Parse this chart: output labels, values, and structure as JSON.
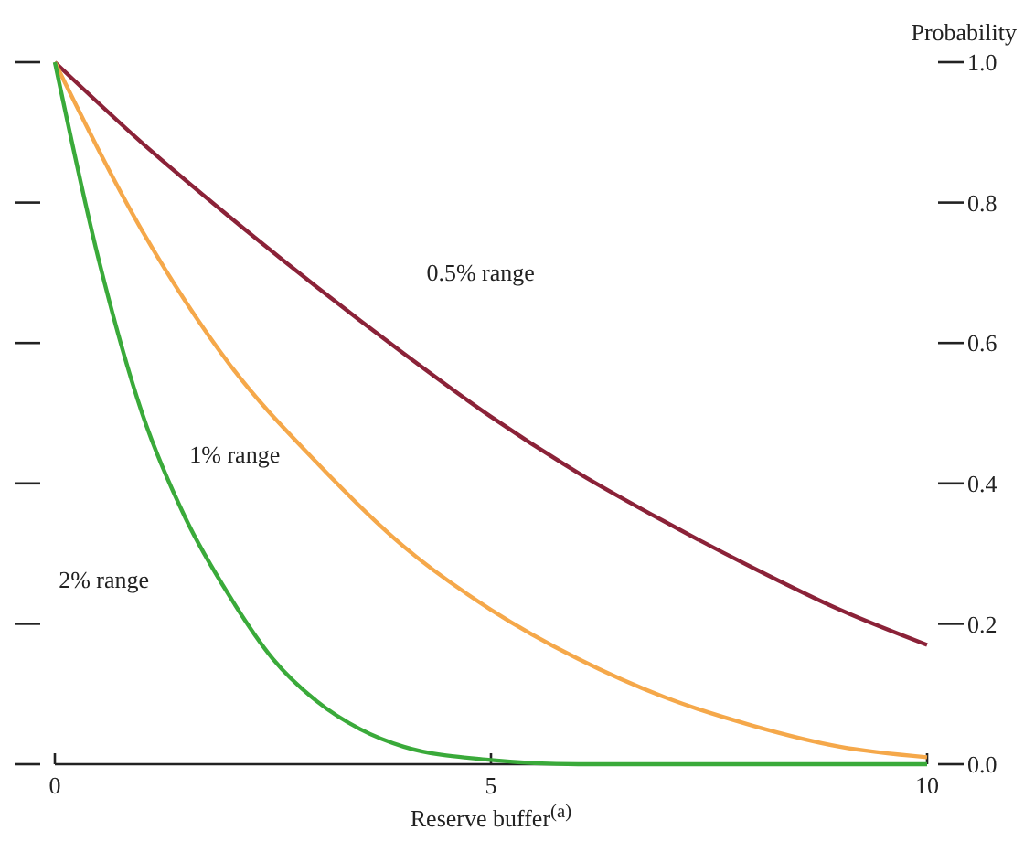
{
  "chart_data": {
    "type": "line",
    "xlabel": "Reserve buffer$^{(a)}$",
    "ylabel": "Probability",
    "xlim": [
      0,
      10
    ],
    "xticks": [
      0,
      5,
      10
    ],
    "ylim": [
      0,
      1
    ],
    "yticks": [
      {
        "value": 0,
        "label": "0.0"
      },
      0.2,
      0.4,
      0.6,
      0.8,
      {
        "value": 1,
        "label": "1.0"
      }
    ],
    "grid": false,
    "marker": "none",
    "line_style": "solid",
    "series": [
      {
        "name": "0.5% range",
        "color": "#8b2238",
        "x": [
          0,
          1,
          2,
          3,
          4,
          5,
          6,
          7,
          8,
          9,
          10
        ],
        "values": [
          1,
          0.885,
          0.78,
          0.68,
          0.585,
          0.495,
          0.415,
          0.345,
          0.28,
          0.22,
          0.17
        ]
      },
      {
        "name": "1% range",
        "color": "#f5a84a",
        "x": [
          0,
          1,
          2,
          3,
          4,
          5,
          6,
          7,
          8,
          9,
          10
        ],
        "values": [
          1,
          0.76,
          0.57,
          0.43,
          0.31,
          0.22,
          0.15,
          0.095,
          0.055,
          0.025,
          0.01
        ]
      },
      {
        "name": "2% range",
        "color": "#3aaa3a",
        "x": [
          0,
          0.5,
          1,
          1.5,
          2,
          2.5,
          3,
          3.5,
          4,
          5,
          6,
          10
        ],
        "values": [
          1,
          0.72,
          0.5,
          0.35,
          0.24,
          0.15,
          0.09,
          0.05,
          0.025,
          0.006,
          0,
          0
        ]
      }
    ]
  }
}
